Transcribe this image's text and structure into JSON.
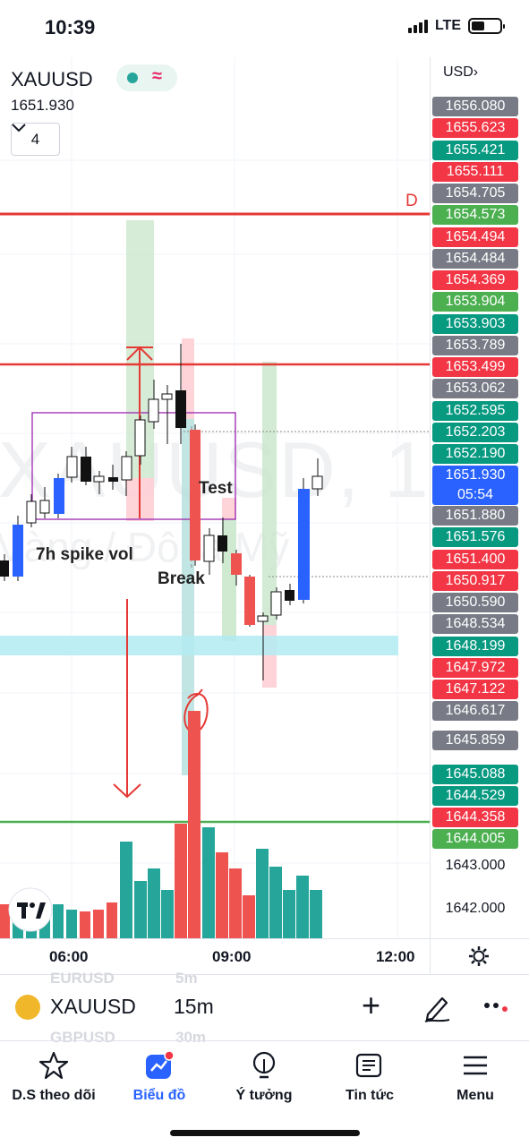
{
  "status_bar": {
    "time": "10:39",
    "network": "LTE"
  },
  "chart": {
    "symbol": "XAUUSD",
    "last_price": "1651.930",
    "indicator_count": "4",
    "watermark": "XAUUSD, 15",
    "watermark_sub": "Vàng / Đô la Mỹ",
    "level_label": "D",
    "annotations": [
      "7h spike vol",
      "Test",
      "Break"
    ],
    "colors": {
      "up": "#26a69a",
      "down": "#ef5350",
      "blue": "#2962ff",
      "green_line": "#4caf50",
      "red_line": "#e53935"
    }
  },
  "price_axis": {
    "currency": "USD",
    "labels": [
      {
        "text": "1656.080",
        "color": "#787b86"
      },
      {
        "text": "1655.623",
        "color": "#f23645"
      },
      {
        "text": "1655.421",
        "color": "#089981"
      },
      {
        "text": "1655.111",
        "color": "#f23645"
      },
      {
        "text": "1654.705",
        "color": "#787b86"
      },
      {
        "text": "1654.573",
        "color": "#4caf50"
      },
      {
        "text": "1654.494",
        "color": "#f23645"
      },
      {
        "text": "1654.484",
        "color": "#787b86"
      },
      {
        "text": "1654.369",
        "color": "#f23645"
      },
      {
        "text": "1653.904",
        "color": "#4caf50"
      },
      {
        "text": "1653.903",
        "color": "#089981"
      },
      {
        "text": "1653.789",
        "color": "#787b86"
      },
      {
        "text": "1653.499",
        "color": "#f23645"
      },
      {
        "text": "1653.062",
        "color": "#787b86"
      },
      {
        "text": "1652.595",
        "color": "#089981"
      },
      {
        "text": "1652.203",
        "color": "#089981"
      },
      {
        "text": "1652.190",
        "color": "#089981"
      },
      {
        "text": "1651.880",
        "color": "#787b86"
      },
      {
        "text": "1651.576",
        "color": "#089981"
      },
      {
        "text": "1651.400",
        "color": "#f23645"
      },
      {
        "text": "1650.917",
        "color": "#f23645"
      },
      {
        "text": "1650.590",
        "color": "#787b86"
      },
      {
        "text": "1648.534",
        "color": "#787b86"
      },
      {
        "text": "1648.199",
        "color": "#089981"
      },
      {
        "text": "1647.972",
        "color": "#f23645"
      },
      {
        "text": "1647.122",
        "color": "#f23645"
      },
      {
        "text": "1646.617",
        "color": "#787b86"
      },
      {
        "text": "1645.859",
        "color": "#787b86"
      },
      {
        "text": "1645.088",
        "color": "#089981"
      },
      {
        "text": "1644.529",
        "color": "#089981"
      },
      {
        "text": "1644.358",
        "color": "#f23645"
      },
      {
        "text": "1644.005",
        "color": "#4caf50"
      },
      {
        "text": "1643.000",
        "color": "plain"
      },
      {
        "text": "1642.000",
        "color": "plain"
      }
    ],
    "current": {
      "price": "1651.930",
      "countdown": "05:54"
    }
  },
  "time_axis": {
    "labels": [
      "06:00",
      "09:00",
      "12:00"
    ]
  },
  "toolbar": {
    "symbol": "XAUUSD",
    "interval": "15m",
    "ghost_symbols": [
      "EURUSD",
      "GBPUSD"
    ],
    "ghost_intervals": [
      "5m",
      "30m"
    ]
  },
  "bottom_nav": {
    "items": [
      {
        "label": "D.S theo dõi",
        "icon": "star-icon"
      },
      {
        "label": "Biểu đồ",
        "icon": "chart-icon"
      },
      {
        "label": "Ý tưởng",
        "icon": "lightbulb-icon"
      },
      {
        "label": "Tin tức",
        "icon": "news-icon"
      },
      {
        "label": "Menu",
        "icon": "hamburger-icon"
      }
    ]
  }
}
